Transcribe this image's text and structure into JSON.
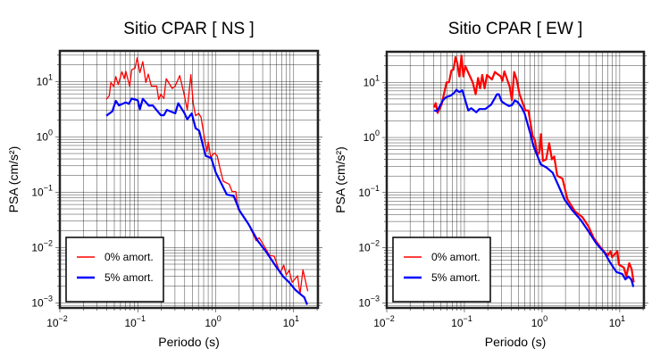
{
  "chart_data": [
    {
      "type": "line",
      "title": "Sitio CPAR [ NS ]",
      "xlabel": "Periodo (s)",
      "ylabel": "PSA (cm/s²)",
      "xscale": "log",
      "yscale": "log",
      "xlim": [
        0.01,
        20.5
      ],
      "ylim": [
        0.00081,
        35.9
      ],
      "grid": true,
      "legend_position": "bottom-left",
      "xticks": [
        {
          "base": "10",
          "exp": "−2",
          "value": -2
        },
        {
          "base": "10",
          "exp": "−1",
          "value": -1
        },
        {
          "base": "10",
          "exp": "0",
          "value": 0
        },
        {
          "base": "10",
          "exp": "1",
          "value": 1
        }
      ],
      "yticks": [
        {
          "base": "10",
          "exp": "1",
          "value": 1
        },
        {
          "base": "10",
          "exp": "0",
          "value": 0
        },
        {
          "base": "10",
          "exp": "−1",
          "value": -1
        },
        {
          "base": "10",
          "exp": "−2",
          "value": -2
        },
        {
          "base": "10",
          "exp": "−3",
          "value": -3
        }
      ],
      "series": [
        {
          "name": "0% amort.",
          "color": "#ff0000",
          "width": 1.3,
          "points_log10_period_psa": [
            [
              -1.404,
              0.677
            ],
            [
              -1.365,
              0.747
            ],
            [
              -1.346,
              0.984
            ],
            [
              -1.308,
              0.909
            ],
            [
              -1.281,
              1.091
            ],
            [
              -1.25,
              0.946
            ],
            [
              -1.204,
              1.177
            ],
            [
              -1.173,
              1.054
            ],
            [
              -1.154,
              1.188
            ],
            [
              -1.104,
              0.919
            ],
            [
              -1.077,
              1.215
            ],
            [
              -1.035,
              1.242
            ],
            [
              -1.008,
              1.43
            ],
            [
              -0.973,
              1.161
            ],
            [
              -0.935,
              1.36
            ],
            [
              -0.896,
              0.984
            ],
            [
              -0.865,
              1.134
            ],
            [
              -0.827,
              0.919
            ],
            [
              -0.758,
              0.919
            ],
            [
              -0.731,
              0.677
            ],
            [
              -0.704,
              0.769
            ],
            [
              -0.665,
              0.694
            ],
            [
              -0.635,
              1.054
            ],
            [
              -0.558,
              0.876
            ],
            [
              -0.519,
              0.919
            ],
            [
              -0.462,
              1.108
            ],
            [
              -0.412,
              0.812
            ],
            [
              -0.365,
              0.489
            ],
            [
              -0.319,
              1.124
            ],
            [
              -0.288,
              0.597
            ],
            [
              -0.258,
              0.382
            ],
            [
              -0.219,
              0.425
            ],
            [
              -0.188,
              0.355
            ],
            [
              -0.154,
              0.059
            ],
            [
              -0.115,
              -0.263
            ],
            [
              -0.096,
              -0.091
            ],
            [
              -0.065,
              -0.371
            ],
            [
              -0.019,
              -0.29
            ],
            [
              0.019,
              -0.344
            ],
            [
              0.058,
              -0.586
            ],
            [
              0.096,
              -0.801
            ],
            [
              0.173,
              -0.855
            ],
            [
              0.212,
              -0.989
            ],
            [
              0.258,
              -0.989
            ],
            [
              0.288,
              -1.312
            ],
            [
              0.404,
              -1.527
            ],
            [
              0.519,
              -1.876
            ],
            [
              0.558,
              -1.823
            ],
            [
              0.627,
              -1.984
            ],
            [
              0.692,
              -2.145
            ],
            [
              0.75,
              -2.156
            ],
            [
              0.827,
              -2.468
            ],
            [
              0.873,
              -2.317
            ],
            [
              0.904,
              -2.495
            ],
            [
              0.942,
              -2.414
            ],
            [
              0.981,
              -2.629
            ],
            [
              1.05,
              -2.511
            ],
            [
              1.081,
              -2.844
            ],
            [
              1.119,
              -2.403
            ],
            [
              1.181,
              -2.79
            ]
          ]
        },
        {
          "name": "5% amort.",
          "color": "#0000ff",
          "width": 2.2,
          "points_log10_period_psa": [
            [
              -1.404,
              0.382
            ],
            [
              -1.327,
              0.462
            ],
            [
              -1.281,
              0.651
            ],
            [
              -1.242,
              0.57
            ],
            [
              -1.154,
              0.624
            ],
            [
              -1.115,
              0.597
            ],
            [
              -1.077,
              0.694
            ],
            [
              -1.0,
              0.661
            ],
            [
              -0.973,
              0.5
            ],
            [
              -0.935,
              0.688
            ],
            [
              -0.858,
              0.565
            ],
            [
              -0.808,
              0.57
            ],
            [
              -0.704,
              0.392
            ],
            [
              -0.665,
              0.392
            ],
            [
              -0.627,
              0.489
            ],
            [
              -0.519,
              0.425
            ],
            [
              -0.481,
              0.608
            ],
            [
              -0.404,
              0.435
            ],
            [
              -0.365,
              0.317
            ],
            [
              -0.308,
              0.425
            ],
            [
              -0.258,
              0.156
            ],
            [
              -0.212,
              0.113
            ],
            [
              -0.154,
              -0.21
            ],
            [
              -0.127,
              -0.344
            ],
            [
              -0.058,
              -0.382
            ],
            [
              0.0,
              -0.64
            ],
            [
              0.077,
              -0.855
            ],
            [
              0.142,
              -1.043
            ],
            [
              0.231,
              -1.07
            ],
            [
              0.308,
              -1.339
            ],
            [
              0.423,
              -1.581
            ],
            [
              0.538,
              -1.876
            ],
            [
              0.654,
              -2.091
            ],
            [
              0.769,
              -2.333
            ],
            [
              0.865,
              -2.522
            ],
            [
              0.942,
              -2.629
            ],
            [
              1.019,
              -2.763
            ],
            [
              1.096,
              -2.855
            ],
            [
              1.135,
              -2.898
            ],
            [
              1.173,
              -3.032
            ]
          ]
        }
      ]
    },
    {
      "type": "line",
      "title": "Sitio CPAR [ EW ]",
      "xlabel": "Periodo (s)",
      "ylabel": "PSA (cm/s²)",
      "xscale": "log",
      "yscale": "log",
      "xlim": [
        0.01,
        20.5
      ],
      "ylim": [
        0.00081,
        35.9
      ],
      "grid": true,
      "legend_position": "bottom-left",
      "xticks": [
        {
          "base": "10",
          "exp": "−2",
          "value": -2
        },
        {
          "base": "10",
          "exp": "−1",
          "value": -1
        },
        {
          "base": "10",
          "exp": "0",
          "value": 0
        },
        {
          "base": "10",
          "exp": "1",
          "value": 1
        }
      ],
      "yticks": [
        {
          "base": "10",
          "exp": "1",
          "value": 1
        },
        {
          "base": "10",
          "exp": "0",
          "value": 0
        },
        {
          "base": "10",
          "exp": "−1",
          "value": -1
        },
        {
          "base": "10",
          "exp": "−2",
          "value": -2
        },
        {
          "base": "10",
          "exp": "−3",
          "value": -3
        }
      ],
      "series": [
        {
          "name": "0% amort.",
          "color": "#ff0000",
          "width": 2.2,
          "points_log10_period_psa": [
            [
              -1.389,
              0.543
            ],
            [
              -1.37,
              0.624
            ],
            [
              -1.344,
              0.446
            ],
            [
              -1.294,
              0.597
            ],
            [
              -1.229,
              1.0
            ],
            [
              -1.198,
              1.0
            ],
            [
              -1.168,
              1.215
            ],
            [
              -1.141,
              1.231
            ],
            [
              -1.115,
              1.457
            ],
            [
              -1.092,
              1.349
            ],
            [
              -1.065,
              1.108
            ],
            [
              -1.038,
              1.484
            ],
            [
              -1.015,
              1.108
            ],
            [
              -0.989,
              1.296
            ],
            [
              -0.893,
              1.0
            ],
            [
              -0.855,
              0.785
            ],
            [
              -0.824,
              1.081
            ],
            [
              -0.798,
              0.892
            ],
            [
              -0.771,
              1.134
            ],
            [
              -0.74,
              0.892
            ],
            [
              -0.71,
              1.134
            ],
            [
              -0.645,
              1.054
            ],
            [
              -0.607,
              1.188
            ],
            [
              -0.531,
              1.108
            ],
            [
              -0.511,
              1.027
            ],
            [
              -0.485,
              1.199
            ],
            [
              -0.416,
              0.919
            ],
            [
              -0.389,
              0.677
            ],
            [
              -0.359,
              1.188
            ],
            [
              -0.328,
              1.054
            ],
            [
              -0.29,
              0.785
            ],
            [
              -0.214,
              0.489
            ],
            [
              -0.176,
              0.489
            ],
            [
              -0.122,
              0.032
            ],
            [
              -0.092,
              -0.048
            ],
            [
              -0.061,
              -0.317
            ],
            [
              -0.034,
              -0.263
            ],
            [
              -0.015,
              0.059
            ],
            [
              0.011,
              -0.425
            ],
            [
              0.053,
              -0.398
            ],
            [
              0.092,
              -0.102
            ],
            [
              0.126,
              -0.398
            ],
            [
              0.156,
              -0.344
            ],
            [
              0.195,
              -0.694
            ],
            [
              0.263,
              -0.747
            ],
            [
              0.328,
              -1.124
            ],
            [
              0.424,
              -1.339
            ],
            [
              0.519,
              -1.446
            ],
            [
              0.595,
              -1.608
            ],
            [
              0.664,
              -1.823
            ],
            [
              0.748,
              -1.984
            ],
            [
              0.844,
              -2.145
            ],
            [
              0.882,
              -2.065
            ],
            [
              0.901,
              -2.172
            ],
            [
              0.969,
              -2.065
            ],
            [
              0.989,
              -2.306
            ],
            [
              1.053,
              -2.36
            ],
            [
              1.084,
              -2.522
            ],
            [
              1.122,
              -2.28
            ],
            [
              1.153,
              -2.387
            ],
            [
              1.179,
              -2.629
            ]
          ]
        },
        {
          "name": "5% amort.",
          "color": "#0000ff",
          "width": 2.2,
          "points_log10_period_psa": [
            [
              -1.389,
              0.489
            ],
            [
              -1.351,
              0.478
            ],
            [
              -1.275,
              0.677
            ],
            [
              -1.237,
              0.731
            ],
            [
              -1.179,
              0.758
            ],
            [
              -1.13,
              0.812
            ],
            [
              -1.103,
              0.866
            ],
            [
              -1.065,
              0.823
            ],
            [
              -1.027,
              0.855
            ],
            [
              -0.989,
              0.677
            ],
            [
              -0.95,
              0.489
            ],
            [
              -0.912,
              0.532
            ],
            [
              -0.847,
              0.457
            ],
            [
              -0.809,
              0.516
            ],
            [
              -0.733,
              0.516
            ],
            [
              -0.656,
              0.597
            ],
            [
              -0.58,
              0.785
            ],
            [
              -0.557,
              0.785
            ],
            [
              -0.519,
              0.651
            ],
            [
              -0.473,
              0.608
            ],
            [
              -0.427,
              0.57
            ],
            [
              -0.389,
              0.586
            ],
            [
              -0.351,
              0.672
            ],
            [
              -0.313,
              0.64
            ],
            [
              -0.263,
              0.543
            ],
            [
              -0.225,
              0.435
            ],
            [
              -0.187,
              0.247
            ],
            [
              -0.149,
              0.059
            ],
            [
              -0.111,
              -0.156
            ],
            [
              -0.073,
              -0.29
            ],
            [
              -0.015,
              -0.489
            ],
            [
              0.061,
              -0.548
            ],
            [
              0.137,
              -0.64
            ],
            [
              0.214,
              -0.882
            ],
            [
              0.29,
              -1.124
            ],
            [
              0.385,
              -1.312
            ],
            [
              0.5,
              -1.5
            ],
            [
              0.603,
              -1.715
            ],
            [
              0.702,
              -1.93
            ],
            [
              0.805,
              -2.091
            ],
            [
              0.882,
              -2.28
            ],
            [
              0.958,
              -2.441
            ],
            [
              1.034,
              -2.478
            ],
            [
              1.073,
              -2.575
            ],
            [
              1.111,
              -2.522
            ],
            [
              1.149,
              -2.575
            ],
            [
              1.176,
              -2.71
            ]
          ]
        }
      ]
    }
  ]
}
